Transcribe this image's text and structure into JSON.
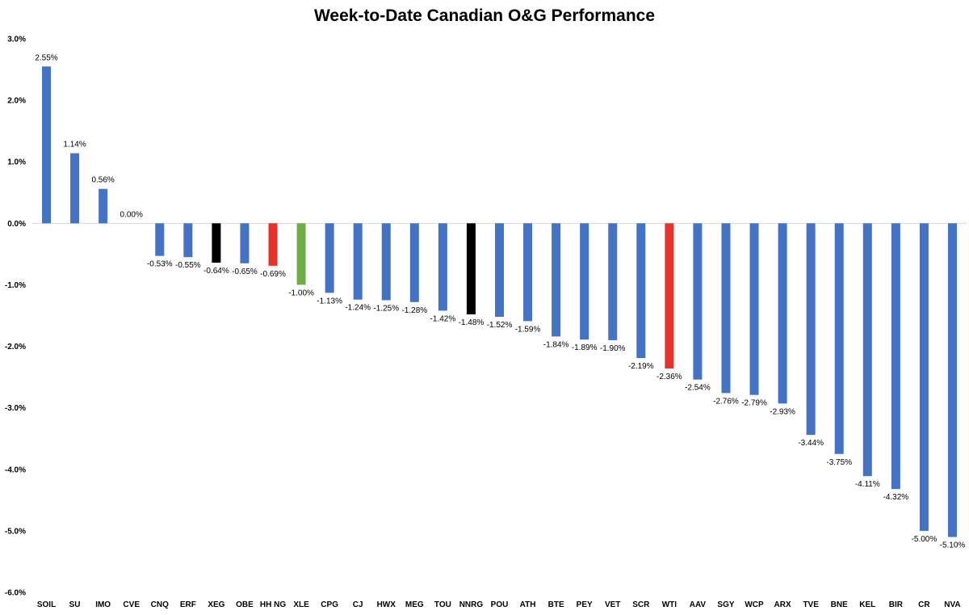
{
  "chart_data": {
    "type": "bar",
    "title": "Week-to-Date Canadian O&G Performance",
    "xlabel": "",
    "ylabel": "",
    "ylim": [
      -6.0,
      3.0
    ],
    "y_ticks": [
      "3.0%",
      "2.0%",
      "1.0%",
      "0.0%",
      "-1.0%",
      "-2.0%",
      "-3.0%",
      "-4.0%",
      "-5.0%",
      "-6.0%"
    ],
    "grid": false,
    "legend": "none",
    "categories": [
      "SOIL",
      "SU",
      "IMO",
      "CVE",
      "CNQ",
      "ERF",
      "XEG",
      "OBE",
      "HH NG",
      "XLE",
      "CPG",
      "CJ",
      "HWX",
      "MEG",
      "TOU",
      "NNRG",
      "POU",
      "ATH",
      "BTE",
      "PEY",
      "VET",
      "SCR",
      "WTI",
      "AAV",
      "SGY",
      "WCP",
      "ARX",
      "TVE",
      "BNE",
      "KEL",
      "BIR",
      "CR",
      "NVA"
    ],
    "values": [
      2.55,
      1.14,
      0.56,
      0.0,
      -0.53,
      -0.55,
      -0.64,
      -0.65,
      -0.69,
      -1.0,
      -1.13,
      -1.24,
      -1.25,
      -1.28,
      -1.42,
      -1.48,
      -1.52,
      -1.59,
      -1.84,
      -1.89,
      -1.9,
      -2.19,
      -2.36,
      -2.54,
      -2.76,
      -2.79,
      -2.93,
      -3.44,
      -3.75,
      -4.11,
      -4.32,
      -5.0,
      -5.1
    ],
    "data_labels": [
      "2.55%",
      "1.14%",
      "0.56%",
      "0.00%",
      "-0.53%",
      "-0.55%",
      "-0.64%",
      "-0.65%",
      "-0.69%",
      "-1.00%",
      "-1.13%",
      "-1.24%",
      "-1.25%",
      "-1.28%",
      "-1.42%",
      "-1.48%",
      "-1.52%",
      "-1.59%",
      "-1.84%",
      "-1.89%",
      "-1.90%",
      "-2.19%",
      "-2.36%",
      "-2.54%",
      "-2.76%",
      "-2.79%",
      "-2.93%",
      "-3.44%",
      "-3.75%",
      "-4.11%",
      "-4.32%",
      "-5.00%",
      "-5.10%"
    ],
    "bar_colors": [
      "#4472C4",
      "#4472C4",
      "#4472C4",
      "#4472C4",
      "#4472C4",
      "#4472C4",
      "#000000",
      "#4472C4",
      "#E8312A",
      "#70AD47",
      "#4472C4",
      "#4472C4",
      "#4472C4",
      "#4472C4",
      "#4472C4",
      "#000000",
      "#4472C4",
      "#4472C4",
      "#4472C4",
      "#4472C4",
      "#4472C4",
      "#4472C4",
      "#E8312A",
      "#4472C4",
      "#4472C4",
      "#4472C4",
      "#4472C4",
      "#4472C4",
      "#4472C4",
      "#4472C4",
      "#4472C4",
      "#4472C4",
      "#4472C4"
    ],
    "axis_color": "#D9D9D9"
  }
}
